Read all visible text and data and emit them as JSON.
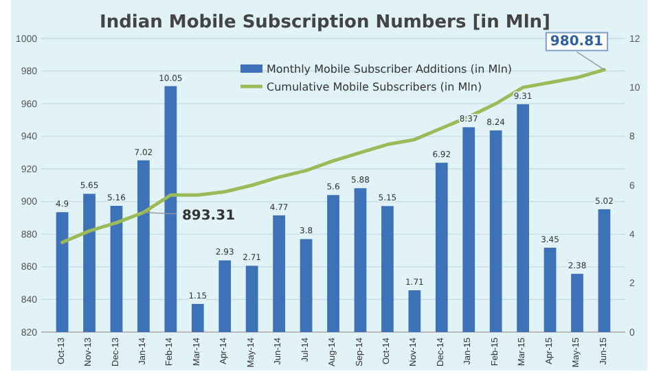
{
  "chart_data": {
    "type": "bar",
    "title": "Indian Mobile Subscription Numbers [in Mln]",
    "categories": [
      "Oct-13",
      "Nov-13",
      "Dec-13",
      "Jan-14",
      "Feb-14",
      "Mar-14",
      "Apr-14",
      "May-14",
      "Jun-14",
      "Jul-14",
      "Aug-14",
      "Sep-14",
      "Oct-14",
      "Nov-14",
      "Dec-14",
      "Jan-15",
      "Feb-15",
      "Mar-15",
      "Apr-15",
      "May-15",
      "Jun-15"
    ],
    "series": [
      {
        "name": "Monthly Mobile Subscriber Additions (in Mln)",
        "axis": "y2",
        "color": "#3d72b8",
        "values": [
          4.9,
          5.65,
          5.16,
          7.02,
          10.05,
          1.15,
          2.93,
          2.71,
          4.77,
          3.8,
          5.6,
          5.88,
          5.15,
          1.71,
          6.92,
          8.37,
          8.24,
          9.31,
          3.45,
          2.38,
          5.02
        ],
        "value_labels": [
          "4.9",
          "5.65",
          "5.16",
          "7.02",
          "10.05",
          "1.15",
          "2.93",
          "2.71",
          "4.77",
          "3.8",
          "5.6",
          "5.88",
          "5.15",
          "1.71",
          "6.92",
          "8.37",
          "8.24",
          "9.31",
          "3.45",
          "2.38",
          "5.02"
        ]
      },
      {
        "name": "Cumulative Mobile Subscribers (in Mln)",
        "type": "line",
        "color": "#9bbb59",
        "values": [
          875,
          882,
          887,
          893.31,
          904,
          904,
          906,
          910,
          915,
          919,
          925,
          930,
          935,
          938,
          945,
          952,
          960,
          970,
          973,
          976,
          980.81
        ],
        "value_labels": [
          null,
          null,
          null,
          "893.31",
          null,
          null,
          null,
          null,
          null,
          null,
          null,
          null,
          null,
          null,
          null,
          null,
          null,
          null,
          null,
          null,
          "980.81"
        ]
      }
    ],
    "ylim": [
      820,
      1000
    ],
    "yticks": [
      820,
      840,
      860,
      880,
      900,
      920,
      940,
      960,
      980,
      1000
    ],
    "y2lim": [
      0,
      12
    ],
    "y2ticks": [
      0,
      2,
      4,
      6,
      8,
      10,
      12
    ],
    "grid": "y",
    "legend": "top right"
  }
}
